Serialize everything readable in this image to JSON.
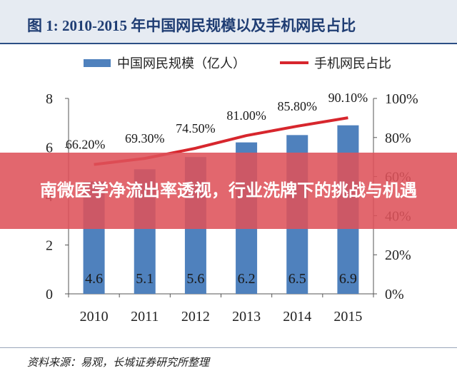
{
  "figure": {
    "title": "图 1:   2010-2015 年中国网民规模以及手机网民占比",
    "source": "资料来源：易观，长城证券研究所整理"
  },
  "banner": {
    "text": "南微医学净流出率透视，行业洗牌下的挑战与机遇"
  },
  "colors": {
    "bar": "#4f81bd",
    "line": "#d7262d",
    "header_bg": "#e6ebf2",
    "banner_bg": "#de525a"
  },
  "chart_data": {
    "type": "bar",
    "categories": [
      "2010",
      "2011",
      "2012",
      "2013",
      "2014",
      "2015"
    ],
    "series": [
      {
        "name": "中国网民规模（亿人）",
        "type": "bar",
        "axis": "left",
        "values": [
          4.6,
          5.1,
          5.6,
          6.2,
          6.5,
          6.9
        ],
        "labels": [
          "4.6",
          "5.1",
          "5.6",
          "6.2",
          "6.5",
          "6.9"
        ]
      },
      {
        "name": "手机网民占比",
        "type": "line",
        "axis": "right",
        "values": [
          66.2,
          69.3,
          74.5,
          81.0,
          85.8,
          90.1
        ],
        "labels": [
          "66.20%",
          "69.30%",
          "74.50%",
          "81.00%",
          "85.80%",
          "90.10%"
        ]
      }
    ],
    "left_axis": {
      "min": 0,
      "max": 8,
      "ticks": [
        "0",
        "2",
        "4",
        "6",
        "8"
      ]
    },
    "right_axis": {
      "min": 0,
      "max": 100,
      "ticks": [
        "0%",
        "20%",
        "40%",
        "60%",
        "80%",
        "100%"
      ]
    },
    "legend": "top",
    "grid": false
  }
}
